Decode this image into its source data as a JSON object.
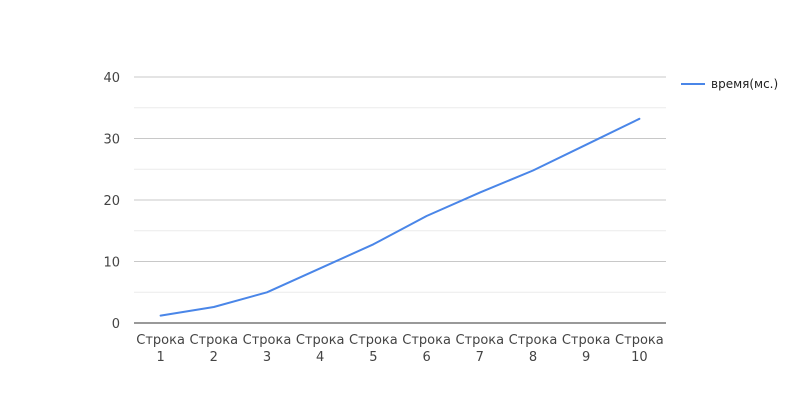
{
  "chart_data": {
    "type": "line",
    "categories": [
      [
        "Строка",
        "1"
      ],
      [
        "Строка",
        "2"
      ],
      [
        "Строка",
        "3"
      ],
      [
        "Строка",
        "4"
      ],
      [
        "Строка",
        "5"
      ],
      [
        "Строка",
        "6"
      ],
      [
        "Строка",
        "7"
      ],
      [
        "Строка",
        "8"
      ],
      [
        "Строка",
        "9"
      ],
      [
        "Строка",
        "10"
      ]
    ],
    "series": [
      {
        "name": "время(мс.)",
        "color": "#4a86e8",
        "values": [
          1.2,
          2.6,
          5.0,
          8.9,
          12.8,
          17.4,
          21.2,
          24.8,
          29.0,
          33.2
        ]
      }
    ],
    "ylim": [
      0,
      40
    ],
    "y_ticks": [
      0,
      10,
      20,
      30,
      40
    ],
    "grid": true,
    "minor_grid": true,
    "legend_position": "right",
    "title": "",
    "xlabel": "",
    "ylabel": ""
  }
}
